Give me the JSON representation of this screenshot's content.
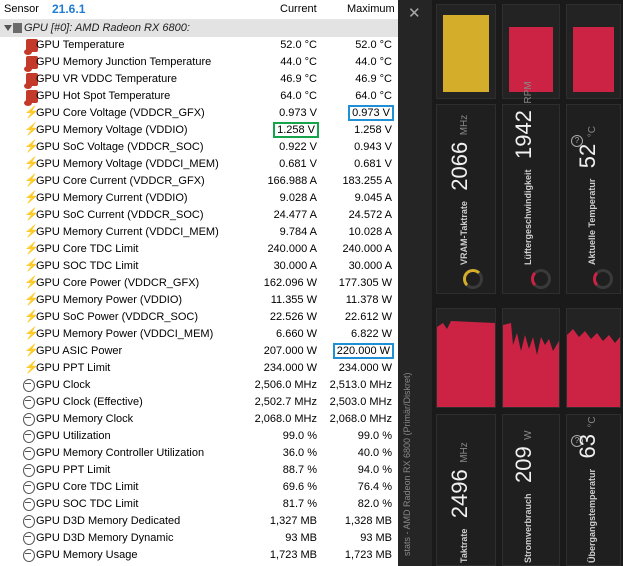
{
  "header": {
    "sensor": "Sensor",
    "version": "21.6.1",
    "current": "Current",
    "maximum": "Maximum"
  },
  "group": {
    "label": "GPU [#0]: AMD Radeon RX 6800:"
  },
  "rows": [
    {
      "icon": "thermometer-icon",
      "name": "GPU Temperature",
      "current": "52.0 °C",
      "max": "52.0 °C"
    },
    {
      "icon": "thermometer-icon",
      "name": "GPU Memory Junction Temperature",
      "current": "44.0 °C",
      "max": "44.0 °C"
    },
    {
      "icon": "thermometer-icon",
      "name": "GPU VR VDDC Temperature",
      "current": "46.9 °C",
      "max": "46.9 °C"
    },
    {
      "icon": "thermometer-icon",
      "name": "GPU Hot Spot Temperature",
      "current": "64.0 °C",
      "max": "64.0 °C"
    },
    {
      "icon": "lightning-icon",
      "name": "GPU Core Voltage (VDDCR_GFX)",
      "current": "0.973 V",
      "max": "0.973 V",
      "hl_max": "blue"
    },
    {
      "icon": "lightning-icon",
      "name": "GPU Memory Voltage (VDDIO)",
      "current": "1.258 V",
      "max": "1.258 V",
      "hl_cur": "green"
    },
    {
      "icon": "lightning-icon",
      "name": "GPU SoC Voltage (VDDCR_SOC)",
      "current": "0.922 V",
      "max": "0.943 V"
    },
    {
      "icon": "lightning-icon",
      "name": "GPU Memory Voltage (VDDCI_MEM)",
      "current": "0.681 V",
      "max": "0.681 V"
    },
    {
      "icon": "lightning-icon",
      "name": "GPU Core Current (VDDCR_GFX)",
      "current": "166.988 A",
      "max": "183.255 A"
    },
    {
      "icon": "lightning-icon",
      "name": "GPU Memory Current (VDDIO)",
      "current": "9.028 A",
      "max": "9.045 A"
    },
    {
      "icon": "lightning-icon",
      "name": "GPU SoC Current (VDDCR_SOC)",
      "current": "24.477 A",
      "max": "24.572 A"
    },
    {
      "icon": "lightning-icon",
      "name": "GPU Memory Current (VDDCI_MEM)",
      "current": "9.784 A",
      "max": "10.028 A"
    },
    {
      "icon": "lightning-icon",
      "name": "GPU Core TDC Limit",
      "current": "240.000 A",
      "max": "240.000 A"
    },
    {
      "icon": "lightning-icon",
      "name": "GPU SOC TDC Limit",
      "current": "30.000 A",
      "max": "30.000 A"
    },
    {
      "icon": "lightning-icon",
      "name": "GPU Core Power (VDDCR_GFX)",
      "current": "162.096 W",
      "max": "177.305 W"
    },
    {
      "icon": "lightning-icon",
      "name": "GPU Memory Power (VDDIO)",
      "current": "11.355 W",
      "max": "11.378 W"
    },
    {
      "icon": "lightning-icon",
      "name": "GPU SoC Power (VDDCR_SOC)",
      "current": "22.526 W",
      "max": "22.612 W"
    },
    {
      "icon": "lightning-icon",
      "name": "GPU Memory Power (VDDCI_MEM)",
      "current": "6.660 W",
      "max": "6.822 W"
    },
    {
      "icon": "lightning-icon",
      "name": "GPU ASIC Power",
      "current": "207.000 W",
      "max": "220.000 W",
      "hl_max": "blue"
    },
    {
      "icon": "lightning-icon",
      "name": "GPU PPT Limit",
      "current": "234.000 W",
      "max": "234.000 W"
    },
    {
      "icon": "gauge-icon",
      "name": "GPU Clock",
      "current": "2,506.0 MHz",
      "max": "2,513.0 MHz"
    },
    {
      "icon": "gauge-icon",
      "name": "GPU Clock (Effective)",
      "current": "2,502.7 MHz",
      "max": "2,503.0 MHz"
    },
    {
      "icon": "gauge-icon",
      "name": "GPU Memory Clock",
      "current": "2,068.0 MHz",
      "max": "2,068.0 MHz"
    },
    {
      "icon": "gauge-icon",
      "name": "GPU Utilization",
      "current": "99.0 %",
      "max": "99.0 %"
    },
    {
      "icon": "gauge-icon",
      "name": "GPU Memory Controller Utilization",
      "current": "36.0 %",
      "max": "40.0 %"
    },
    {
      "icon": "gauge-icon",
      "name": "GPU PPT Limit",
      "current": "88.7 %",
      "max": "94.0 %"
    },
    {
      "icon": "gauge-icon",
      "name": "GPU Core TDC Limit",
      "current": "69.6 %",
      "max": "76.4 %"
    },
    {
      "icon": "gauge-icon",
      "name": "GPU SOC TDC Limit",
      "current": "81.7 %",
      "max": "82.0 %"
    },
    {
      "icon": "gauge-icon",
      "name": "GPU D3D Memory Dedicated",
      "current": "1,327 MB",
      "max": "1,328 MB"
    },
    {
      "icon": "gauge-icon",
      "name": "GPU D3D Memory Dynamic",
      "current": "93 MB",
      "max": "93 MB"
    },
    {
      "icon": "gauge-icon",
      "name": "GPU Memory Usage",
      "current": "1,723 MB",
      "max": "1,723 MB"
    }
  ],
  "overlay": {
    "sidebar_title": "stats - AMD Radeon RX 6800 (Primär/Diskret)",
    "tiles_top": [
      {
        "label": "VRAM-Taktrate",
        "value": "2066",
        "unit": "MHz",
        "color": "#d4ae2b",
        "fill_fraction": 1.0
      },
      {
        "label": "Lüftergeschwindigkeit",
        "value": "1942",
        "unit": "RPM",
        "color": "#cc2244",
        "fill_fraction": 0.85
      },
      {
        "label": "Aktuelle Temperatur",
        "value": "52",
        "unit": "°C",
        "color": "#cc2244",
        "fill_fraction": 0.85
      }
    ],
    "tiles_bottom": [
      {
        "label": "Taktrate",
        "value": "2496",
        "unit": "MHz",
        "color": "#cc2244"
      },
      {
        "label": "Stromverbrauch",
        "value": "209",
        "unit": "W",
        "color": "#cc2244"
      },
      {
        "label": "Übergangstemperatur",
        "value": "63",
        "unit": "°C",
        "color": "#cc2244"
      }
    ]
  }
}
